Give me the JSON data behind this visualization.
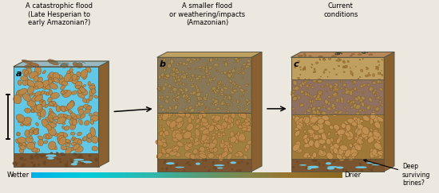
{
  "title_a": "A catastrophic flood\n(Late Hesperian to\nearly Amazonian?)",
  "title_b": "A smaller flood\nor weathering/impacts\n(Amazonian)",
  "title_c": "Current\nconditions",
  "label_a": "a",
  "label_b": "b",
  "label_c": "c",
  "wetter_label": "Wetter",
  "drier_label": "Drier",
  "deep_brines_label": "Deep\nsurviving\nbrines?",
  "bg_color": "#ede8df",
  "water_blue": "#62c8e5",
  "rock_tan": "#b8894a",
  "rock_dark": "#7a5020",
  "base_dark": "#6b4828",
  "base_bg": "#7a5530",
  "top_tan": "#c8a870",
  "top_tan_b": "#b09060",
  "side_brown": "#8a6030",
  "outline": "#555544",
  "fine_rock_bg_b_upper": "#9a8060",
  "fine_rock_bg_b_lower": "#a08048",
  "fine_rock_bg_c_top": "#b89060",
  "fine_rock_bg_c_mid": "#a07840",
  "water_ice": "#70c8e0",
  "gradient_left": "#00b0e8",
  "gradient_right": "#8a6820"
}
